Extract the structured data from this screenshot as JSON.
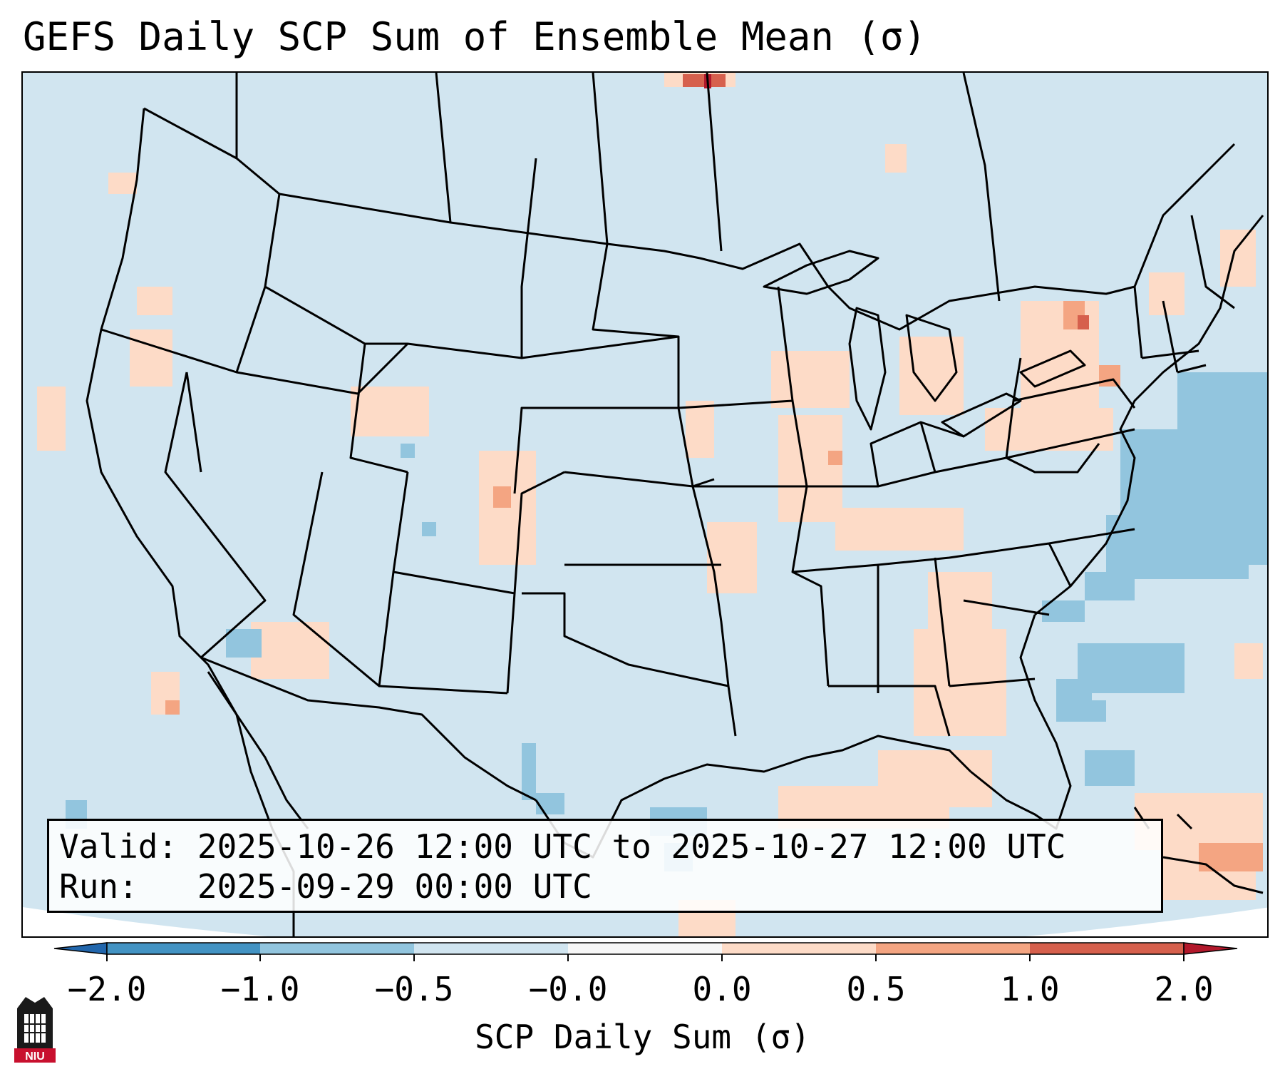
{
  "title": "GEFS Daily SCP Sum of Ensemble Mean (σ)",
  "info": {
    "valid_label": "Valid:",
    "valid_value": "2025-10-26 12:00 UTC to 2025-10-27 12:00 UTC",
    "run_label": "Run:",
    "run_value": "2025-09-29 00:00 UTC"
  },
  "colorbar": {
    "label": "SCP Daily Sum (σ)",
    "ticks": [
      "−2.0",
      "−1.0",
      "−0.5",
      "−0.0",
      "0.0",
      "0.5",
      "1.0",
      "2.0"
    ],
    "colors": [
      "#2166ac",
      "#4393c3",
      "#92c5de",
      "#d1e5f0",
      "#f7f7f7",
      "#fddbc7",
      "#f4a582",
      "#d6604d",
      "#b2182b"
    ]
  },
  "logo": {
    "text": "NIU",
    "color": "#c8102e"
  },
  "map": {
    "background_value_color": "#d1e5f0",
    "ocean_outside_color": "#ffffff",
    "border_color": "#000000"
  }
}
